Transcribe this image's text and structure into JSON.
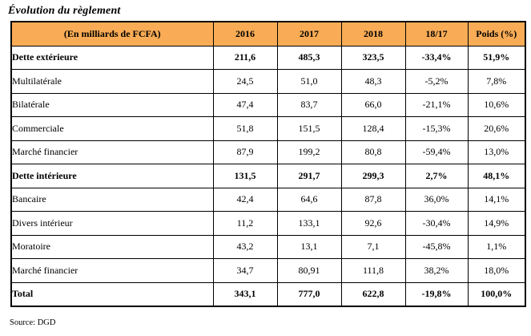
{
  "title": "Évolution du règlement",
  "source": "Source: DGD",
  "colors": {
    "header_bg": "#F9AC55",
    "row_separator_navy": "#1F3864",
    "border_black": "#000000"
  },
  "table": {
    "columns": [
      "(En milliards de FCFA)",
      "2016",
      "2017",
      "2018",
      "18/17",
      "Poids (%)"
    ],
    "rows": [
      {
        "label": "Dette extérieure",
        "bold": true,
        "values": [
          "211,6",
          "485,3",
          "323,5",
          "-33,4%",
          "51,9%"
        ]
      },
      {
        "label": "Multilatérale",
        "bold": false,
        "values": [
          "24,5",
          "51,0",
          "48,3",
          "-5,2%",
          "7,8%"
        ]
      },
      {
        "label": "Bilatérale",
        "bold": false,
        "values": [
          "47,4",
          "83,7",
          "66,0",
          "-21,1%",
          "10,6%"
        ]
      },
      {
        "label": "Commerciale",
        "bold": false,
        "values": [
          "51,8",
          "151,5",
          "128,4",
          "-15,3%",
          "20,6%"
        ]
      },
      {
        "label": "Marché financier",
        "bold": false,
        "values": [
          "87,9",
          "199,2",
          "80,8",
          "-59,4%",
          "13,0%"
        ]
      },
      {
        "label": "Dette intérieure",
        "bold": true,
        "values": [
          "131,5",
          "291,7",
          "299,3",
          "2,7%",
          "48,1%"
        ]
      },
      {
        "label": "Bancaire",
        "bold": false,
        "values": [
          "42,4",
          "64,6",
          "87,8",
          "36,0%",
          "14,1%"
        ]
      },
      {
        "label": "Divers intérieur",
        "bold": false,
        "values": [
          "11,2",
          "133,1",
          "92,6",
          "-30,4%",
          "14,9%"
        ]
      },
      {
        "label": "Moratoire",
        "bold": false,
        "values": [
          "43,2",
          "13,1",
          "7,1",
          "-45,8%",
          "1,1%"
        ]
      },
      {
        "label": "Marché financier",
        "bold": false,
        "values": [
          "34,7",
          "80,91",
          "111,8",
          "38,2%",
          "18,0%"
        ]
      },
      {
        "label": "Total",
        "bold": true,
        "values": [
          "343,1",
          "777,0",
          "622,8",
          "-19,8%",
          "100,0%"
        ]
      }
    ]
  }
}
